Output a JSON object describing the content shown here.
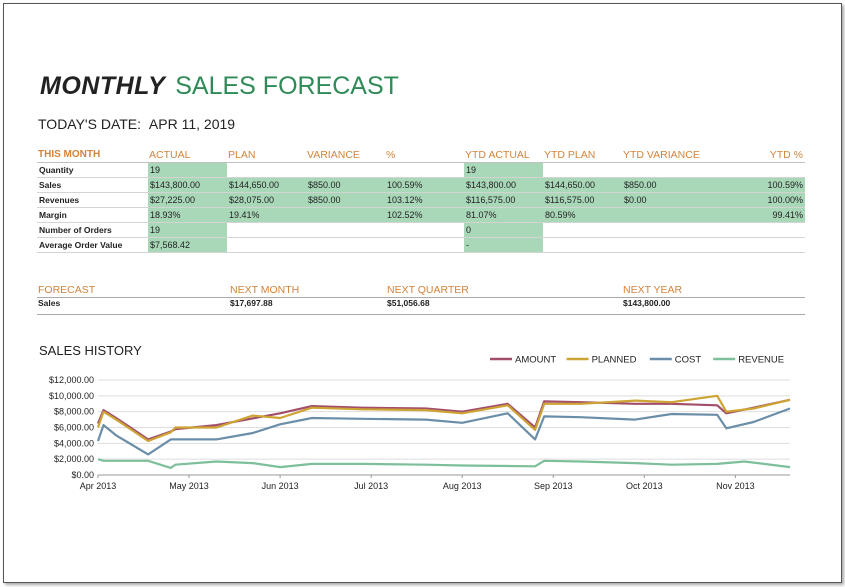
{
  "title": {
    "bold": "MONTHLY",
    "rest": "SALES FORECAST"
  },
  "date": {
    "label": "TODAY'S DATE:",
    "value": "APR 11, 2019"
  },
  "metrics": {
    "headers": [
      "THIS MONTH",
      "ACTUAL",
      "PLAN",
      "VARIANCE",
      "%",
      "YTD ACTUAL",
      "YTD PLAN",
      "YTD VARIANCE",
      "YTD %"
    ],
    "rows": [
      {
        "label": "Quantity",
        "actual": "19",
        "plan": "",
        "variance": "",
        "pct": "",
        "ytd_actual": "19",
        "ytd_plan": "",
        "ytd_variance": "",
        "ytd_pct": ""
      },
      {
        "label": "Sales",
        "actual": "$143,800.00",
        "plan": "$144,650.00",
        "variance": "$850.00",
        "pct": "100.59%",
        "ytd_actual": "$143,800.00",
        "ytd_plan": "$144,650.00",
        "ytd_variance": "$850.00",
        "ytd_pct": "100.59%"
      },
      {
        "label": "Revenues",
        "actual": "$27,225.00",
        "plan": "$28,075.00",
        "variance": "$850.00",
        "pct": "103.12%",
        "ytd_actual": "$116,575.00",
        "ytd_plan": "$116,575.00",
        "ytd_variance": "$0.00",
        "ytd_pct": "100.00%"
      },
      {
        "label": "Margin",
        "actual": "18.93%",
        "plan": "19.41%",
        "variance": "",
        "pct": "102.52%",
        "ytd_actual": "81.07%",
        "ytd_plan": "80.59%",
        "ytd_variance": "",
        "ytd_pct": "99.41%"
      },
      {
        "label": "Number of Orders",
        "actual": "19",
        "plan": "",
        "variance": "",
        "pct": "",
        "ytd_actual": "0",
        "ytd_plan": "",
        "ytd_variance": "",
        "ytd_pct": ""
      },
      {
        "label": "Average Order Value",
        "actual": "$7,568.42",
        "plan": "",
        "variance": "",
        "pct": "",
        "ytd_actual": "-",
        "ytd_plan": "",
        "ytd_variance": "",
        "ytd_pct": ""
      }
    ]
  },
  "forecast": {
    "headers": [
      "FORECAST",
      "NEXT MONTH",
      "NEXT QUARTER",
      "NEXT YEAR"
    ],
    "label": "Sales",
    "values": [
      "$17,697.88",
      "$51,056.68",
      "$143,800.00"
    ]
  },
  "chart_title": "SALES HISTORY",
  "chart_data": {
    "type": "line",
    "title": "SALES HISTORY",
    "xlabel": "",
    "ylabel": "",
    "x_ticks": [
      "Apr 2013",
      "May 2013",
      "Jun 2013",
      "Jul 2013",
      "Aug 2013",
      "Sep 2013",
      "Oct 2013",
      "Nov 2013"
    ],
    "x_range": [
      0,
      7.6
    ],
    "y_ticks": [
      "$0.00",
      "$2,000.00",
      "$4,000.00",
      "$6,000.00",
      "$8,000.00",
      "$10,000.00",
      "$12,000.00"
    ],
    "ylim": [
      0,
      12000
    ],
    "legend": "top-right",
    "series": [
      {
        "name": "AMOUNT",
        "color": "#a24e6b",
        "x": [
          0,
          0.06,
          0.2,
          0.55,
          0.8,
          0.85,
          1.3,
          2.0,
          2.35,
          2.9,
          3.6,
          4.0,
          4.5,
          4.8,
          4.9,
          5.3,
          5.9,
          6.3,
          6.8,
          6.9,
          7.2,
          7.6
        ],
        "y": [
          6500,
          8200,
          7200,
          4500,
          5500,
          5800,
          6300,
          7800,
          8700,
          8500,
          8400,
          8000,
          9000,
          6000,
          9300,
          9200,
          9000,
          9000,
          8800,
          7800,
          8500,
          9500
        ]
      },
      {
        "name": "PLANNED",
        "color": "#cda434",
        "x": [
          0,
          0.06,
          0.2,
          0.55,
          0.8,
          0.85,
          1.3,
          1.7,
          2.0,
          2.35,
          2.9,
          3.6,
          4.0,
          4.5,
          4.8,
          4.9,
          5.3,
          5.9,
          6.3,
          6.8,
          6.9,
          7.2,
          7.6
        ],
        "y": [
          6000,
          8000,
          7000,
          4300,
          5400,
          6000,
          6000,
          7500,
          7200,
          8500,
          8300,
          8200,
          7800,
          8800,
          5700,
          9000,
          9000,
          9400,
          9200,
          10000,
          8000,
          8400,
          9500
        ]
      },
      {
        "name": "COST",
        "color": "#6b8ea8",
        "x": [
          0,
          0.06,
          0.2,
          0.55,
          0.8,
          1.3,
          1.7,
          2.0,
          2.35,
          2.9,
          3.6,
          4.0,
          4.5,
          4.8,
          4.9,
          5.3,
          5.9,
          6.3,
          6.8,
          6.9,
          7.2,
          7.6
        ],
        "y": [
          4300,
          6300,
          5000,
          2600,
          4500,
          4500,
          5300,
          6400,
          7200,
          7100,
          7000,
          6600,
          7800,
          4500,
          7400,
          7300,
          7000,
          7700,
          7600,
          5900,
          6700,
          8400
        ]
      },
      {
        "name": "REVENUE",
        "color": "#7cbf9a",
        "x": [
          0,
          0.06,
          0.55,
          0.8,
          0.85,
          1.3,
          1.7,
          2.0,
          2.35,
          2.9,
          3.6,
          4.0,
          4.8,
          4.9,
          5.3,
          5.9,
          6.3,
          6.8,
          7.1,
          7.6
        ],
        "y": [
          2000,
          1800,
          1800,
          900,
          1300,
          1700,
          1500,
          1000,
          1400,
          1400,
          1300,
          1200,
          1100,
          1800,
          1700,
          1500,
          1300,
          1400,
          1700,
          1000
        ]
      }
    ]
  }
}
